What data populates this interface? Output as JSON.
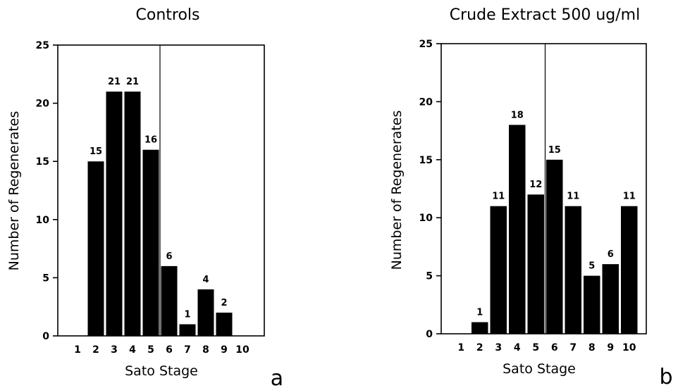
{
  "chart_data": [
    {
      "type": "bar",
      "title": "Controls",
      "xlabel": "Sato Stage",
      "ylabel": "Number of Regenerates",
      "panel_label": "a",
      "categories": [
        "1",
        "2",
        "3",
        "4",
        "5",
        "6",
        "7",
        "8",
        "9",
        "10"
      ],
      "values": [
        0,
        15,
        21,
        21,
        16,
        6,
        1,
        4,
        2,
        0
      ],
      "data_labels": [
        "",
        "15",
        "21",
        "21",
        "16",
        "6",
        "1",
        "4",
        "2",
        ""
      ],
      "ylim": [
        0,
        25
      ],
      "yticks": [
        "0",
        "5",
        "10",
        "15",
        "20",
        "25"
      ],
      "divider_after_category": 5,
      "grid": false,
      "color": "#000000"
    },
    {
      "type": "bar",
      "title": "Crude Extract 500 ug/ml",
      "xlabel": "Sato Stage",
      "ylabel": "Number of Regenerates",
      "panel_label": "b",
      "categories": [
        "1",
        "2",
        "3",
        "4",
        "5",
        "6",
        "7",
        "8",
        "9",
        "10"
      ],
      "values": [
        0,
        1,
        11,
        18,
        12,
        15,
        11,
        5,
        6,
        11
      ],
      "data_labels": [
        "",
        "1",
        "11",
        "18",
        "12",
        "15",
        "11",
        "5",
        "6",
        "11"
      ],
      "ylim": [
        0,
        25
      ],
      "yticks": [
        "0",
        "5",
        "10",
        "15",
        "20",
        "25"
      ],
      "divider_after_category": 5,
      "grid": false,
      "color": "#000000"
    }
  ]
}
